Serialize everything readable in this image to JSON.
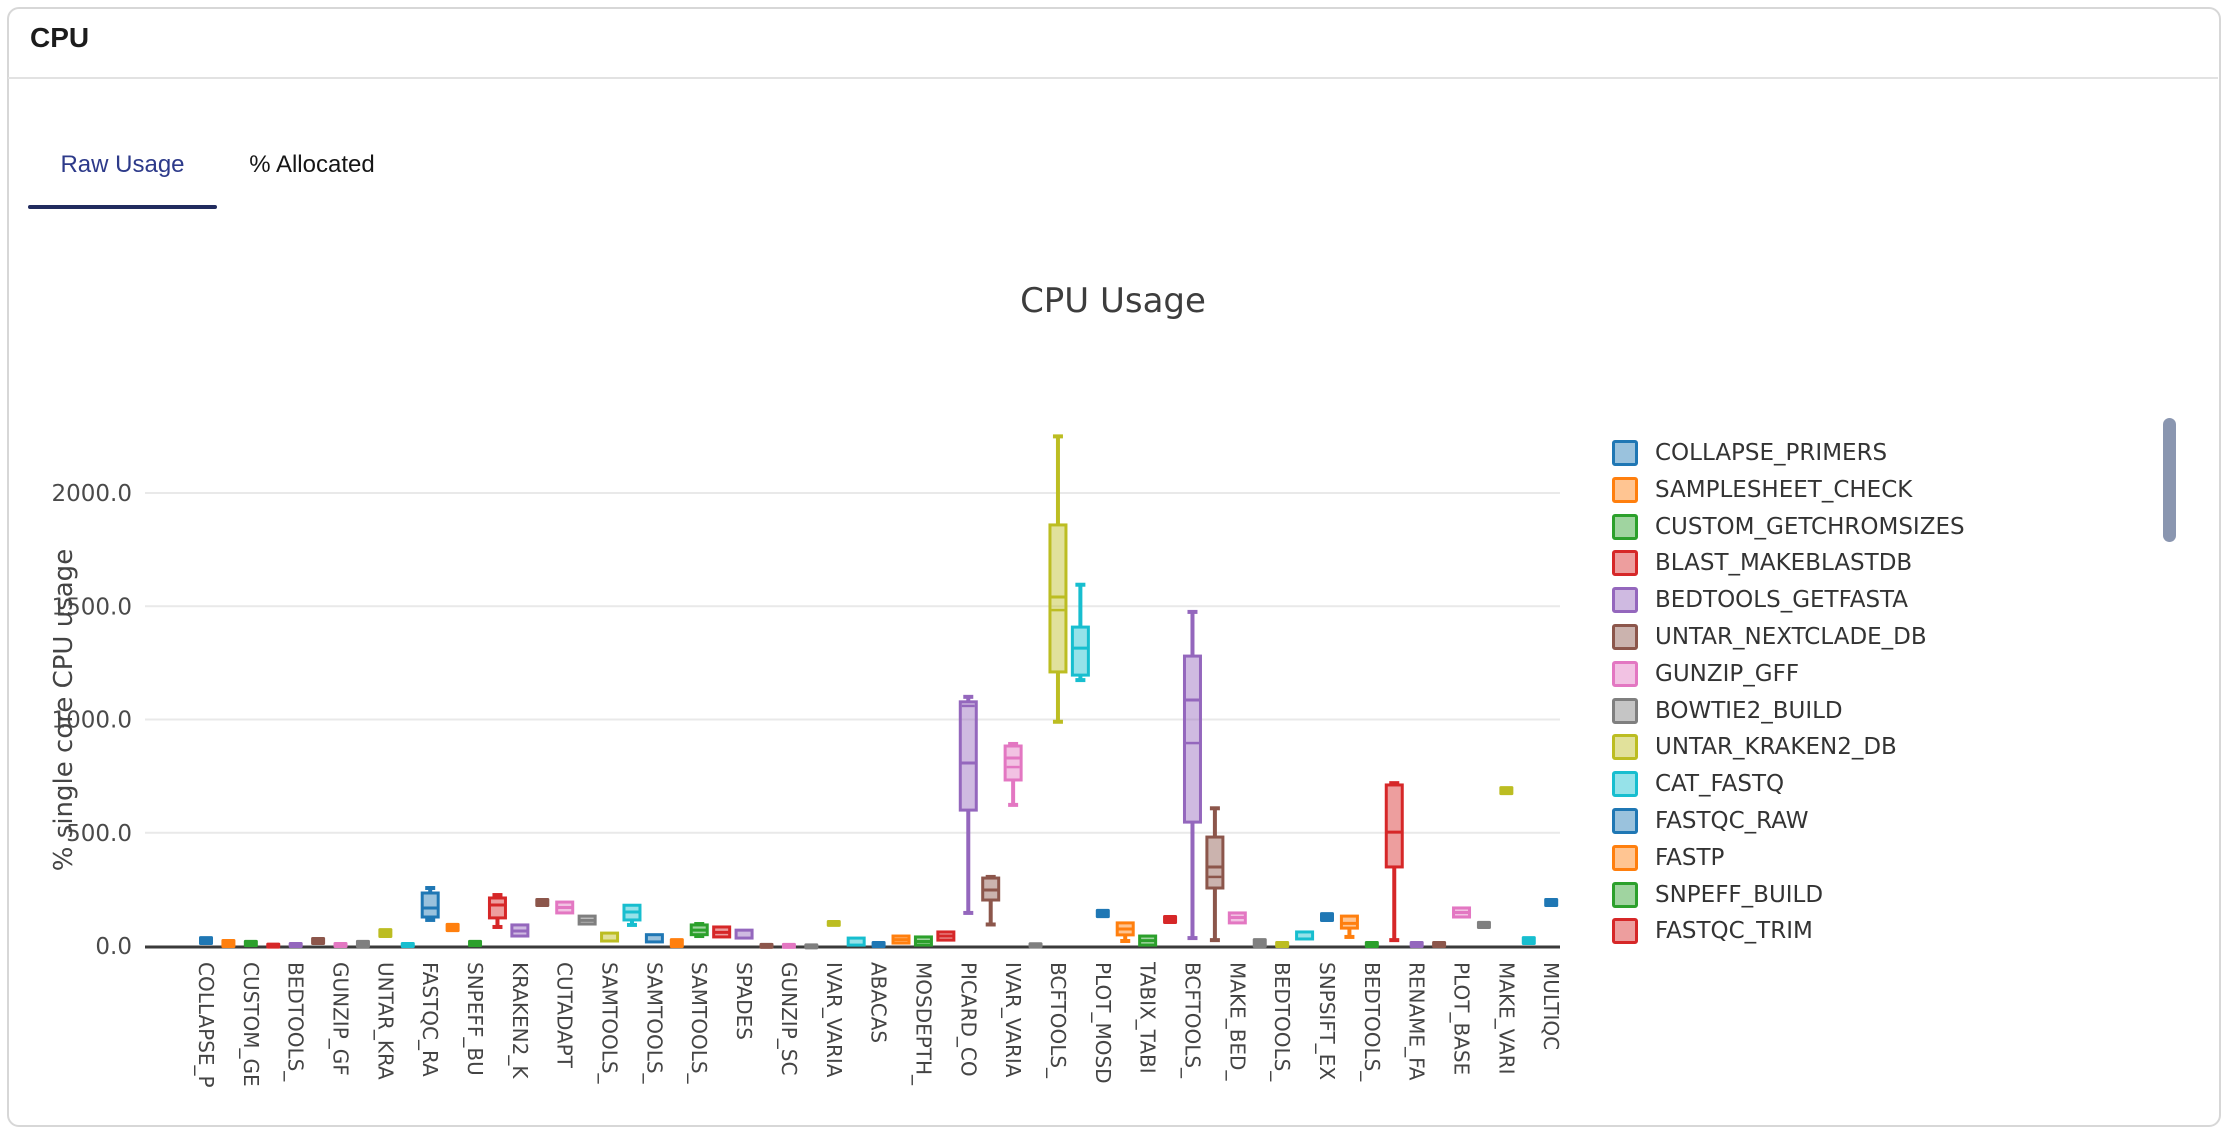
{
  "header": {
    "title": "CPU"
  },
  "tabs": [
    {
      "label": "Raw Usage",
      "active": true
    },
    {
      "label": "% Allocated",
      "active": false
    }
  ],
  "accent": {
    "active_tab_text": "#2d3a8a",
    "active_tab_underline": "#212b5e",
    "scrollbar": "#8a96b0"
  },
  "chart_data": {
    "type": "box",
    "title": "CPU Usage",
    "ylabel": "% single core CPU usage",
    "grid": "horizontal",
    "legend_position": "right",
    "ylim": [
      0,
      2280
    ],
    "yticks": [
      2000,
      1500,
      1000,
      500,
      0
    ],
    "ytick_labels": [
      "2000.0",
      "1500.0",
      "1000.0",
      "500.0",
      "0.0"
    ],
    "xlabels": [
      "COLLAPSE_P",
      "CUSTOM_GE",
      "BEDTOOLS_",
      "GUNZIP_GF",
      "UNTAR_KRA",
      "FASTQC_RA",
      "SNPEFF_BU",
      "KRAKEN2_K",
      "CUTADAPT",
      "SAMTOOLS_",
      "SAMTOOLS_",
      "SAMTOOLS_",
      "SPADES",
      "GUNZIP_SC",
      "IVAR_VARIA",
      "ABACAS",
      "MOSDEPTH_",
      "PICARD_CO",
      "IVAR_VARIA",
      "BCFTOOLS_",
      "PLOT_MOSD",
      "TABIX_TABI",
      "BCFTOOLS_",
      "MAKE_BED_",
      "BEDTOOLS_",
      "SNPSIFT_EX",
      "BEDTOOLS_",
      "RENAME_FA",
      "PLOT_BASE",
      "MAKE_VARI",
      "MULTIQC"
    ],
    "palette": {
      "blue": "#1f77b4",
      "orange": "#ff7f0e",
      "green": "#2ca02c",
      "red": "#d62728",
      "purple": "#9467bd",
      "brown": "#8c564b",
      "pink": "#e377c2",
      "gray": "#7f7f7f",
      "olive": "#bcbd22",
      "cyan": "#17becf"
    },
    "color_cycle": [
      "blue",
      "orange",
      "green",
      "red",
      "purple",
      "brown",
      "pink",
      "gray",
      "olive",
      "cyan"
    ],
    "legend": [
      {
        "label": "COLLAPSE_PRIMERS",
        "color": "blue"
      },
      {
        "label": "SAMPLESHEET_CHECK",
        "color": "orange"
      },
      {
        "label": "CUSTOM_GETCHROMSIZES",
        "color": "green"
      },
      {
        "label": "BLAST_MAKEBLASTDB",
        "color": "red"
      },
      {
        "label": "BEDTOOLS_GETFASTA",
        "color": "purple"
      },
      {
        "label": "UNTAR_NEXTCLADE_DB",
        "color": "brown"
      },
      {
        "label": "GUNZIP_GFF",
        "color": "pink"
      },
      {
        "label": "BOWTIE2_BUILD",
        "color": "gray"
      },
      {
        "label": "UNTAR_KRAKEN2_DB",
        "color": "olive"
      },
      {
        "label": "CAT_FASTQ",
        "color": "cyan"
      },
      {
        "label": "FASTQC_RAW",
        "color": "blue"
      },
      {
        "label": "FASTP",
        "color": "orange"
      },
      {
        "label": "SNPEFF_BUILD",
        "color": "green"
      },
      {
        "label": "FASTQC_TRIM",
        "color": "red"
      }
    ],
    "boxes_note": "61 slots; values are [q1, q3, median, whisker_lo, whisker_hi, extra_line]; % single-core CPU units",
    "boxes": [
      [
        13,
        35,
        null,
        null,
        null,
        null
      ],
      [
        0,
        22,
        null,
        null,
        null,
        null
      ],
      [
        4,
        18,
        null,
        null,
        null,
        null
      ],
      [
        0,
        6,
        null,
        null,
        null,
        null
      ],
      [
        0,
        9,
        null,
        null,
        null,
        null
      ],
      [
        13,
        31,
        null,
        null,
        null,
        null
      ],
      [
        0,
        9,
        null,
        null,
        null,
        null
      ],
      [
        0,
        18,
        null,
        null,
        null,
        null
      ],
      [
        44,
        70,
        null,
        null,
        null,
        null
      ],
      [
        0,
        9,
        null,
        null,
        null,
        null
      ],
      [
        128,
        234,
        168,
        115,
        256,
        null
      ],
      [
        70,
        93,
        null,
        null,
        null,
        null
      ],
      [
        4,
        18,
        null,
        null,
        null,
        null
      ],
      [
        124,
        212,
        181,
        84,
        225,
        null
      ],
      [
        44,
        93,
        66,
        null,
        null,
        null
      ],
      [
        181,
        203,
        null,
        null,
        null,
        null
      ],
      [
        146,
        194,
        170,
        null,
        null,
        null
      ],
      [
        97,
        132,
        113,
        null,
        null,
        null
      ],
      [
        22,
        57,
        null,
        null,
        null,
        null
      ],
      [
        115,
        180,
        150,
        93,
        null,
        null
      ],
      [
        18,
        50,
        null,
        null,
        null,
        null
      ],
      [
        0,
        26,
        null,
        null,
        null,
        null
      ],
      [
        50,
        93,
        70,
        44,
        97,
        null
      ],
      [
        40,
        84,
        60,
        null,
        null,
        null
      ],
      [
        35,
        70,
        null,
        null,
        null,
        null
      ],
      [
        0,
        5,
        null,
        null,
        null,
        null
      ],
      [
        0,
        5,
        null,
        null,
        null,
        null
      ],
      [
        0,
        3,
        null,
        null,
        null,
        null
      ],
      [
        93,
        106,
        null,
        null,
        null,
        null
      ],
      [
        4,
        35,
        null,
        null,
        null,
        null
      ],
      [
        0,
        13,
        null,
        null,
        null,
        null
      ],
      [
        13,
        44,
        28,
        null,
        null,
        null
      ],
      [
        4,
        40,
        20,
        null,
        null,
        null
      ],
      [
        26,
        62,
        44,
        null,
        null,
        null
      ],
      [
        600,
        1078,
        808,
        146,
        1100,
        1060
      ],
      [
        203,
        300,
        247,
        95,
        305,
        null
      ],
      [
        733,
        883,
        830,
        623,
        892,
        790
      ],
      [
        0,
        8,
        null,
        null,
        null,
        null
      ],
      [
        1210,
        1859,
        1541,
        990,
        2250,
        1483
      ],
      [
        1196,
        1408,
        1315,
        1174,
        1595,
        null
      ],
      [
        132,
        155,
        null,
        null,
        null,
        null
      ],
      [
        49,
        102,
        75,
        22,
        null,
        null
      ],
      [
        4,
        44,
        24,
        null,
        null,
        null
      ],
      [
        106,
        128,
        null,
        null,
        null,
        null
      ],
      [
        547,
        1280,
        1086,
        35,
        1475,
        896
      ],
      [
        256,
        481,
        349,
        26,
        608,
        305
      ],
      [
        102,
        146,
        126,
        null,
        null,
        null
      ],
      [
        0,
        26,
        null,
        null,
        null,
        null
      ],
      [
        0,
        13,
        null,
        null,
        null,
        null
      ],
      [
        31,
        62,
        null,
        null,
        null,
        null
      ],
      [
        115,
        141,
        null,
        null,
        null,
        null
      ],
      [
        79,
        132,
        100,
        40,
        null,
        null
      ],
      [
        0,
        13,
        null,
        null,
        null,
        null
      ],
      [
        349,
        711,
        503,
        26,
        719,
        null
      ],
      [
        0,
        13,
        null,
        null,
        null,
        null
      ],
      [
        0,
        13,
        null,
        null,
        null,
        null
      ],
      [
        128,
        168,
        148,
        null,
        null,
        null
      ],
      [
        84,
        102,
        null,
        null,
        null,
        null
      ],
      [
        675,
        697,
        null,
        null,
        null,
        null
      ],
      [
        13,
        35,
        null,
        null,
        null,
        null
      ],
      [
        181,
        203,
        null,
        null,
        null,
        null
      ]
    ]
  }
}
